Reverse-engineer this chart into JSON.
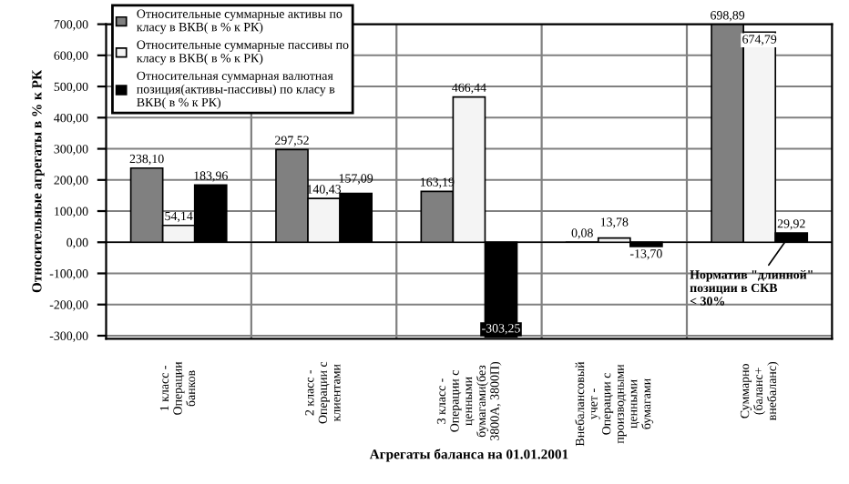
{
  "chart_data": {
    "type": "bar",
    "xlabel": "Агрегаты баланса на 01.01.2001",
    "ylabel": "Относительные агрегаты в % к РК",
    "categories": [
      "1 класс -\nОперации\nбанков",
      "2 класс -\nОперации с\nклиентами",
      "3 класс -\nОперации с\nценными\nбумагами(без\n3800А, 3800П)",
      "Внебалансовый\nучет -\nОперации с\nпроизводными\nценными\nбумагами",
      "Суммарно\n(баланс+\nвнебаланс)"
    ],
    "series": [
      {
        "name": "Относительные суммарные активы по класу в ВКВ( в % к РК)",
        "color": "#808080",
        "values": [
          238.1,
          297.52,
          163.19,
          0.08,
          698.89
        ],
        "value_labels": [
          "238,10",
          "297,52",
          "163,19",
          "0,08",
          "698,89"
        ]
      },
      {
        "name": "Относительные суммарные пассивы по класу в ВКВ( в % к РК)",
        "color": "#f4f4f4",
        "values": [
          54.14,
          140.43,
          466.44,
          13.78,
          674.79
        ],
        "value_labels": [
          "54,14",
          "140,43",
          "466,44",
          "13,78",
          "674,79"
        ]
      },
      {
        "name": "Относительная суммарная валютная позиция(активы-пассивы) по класу в ВКВ( в % к РК)",
        "color": "#000000",
        "values": [
          183.96,
          157.09,
          -303.25,
          -13.7,
          29.92
        ],
        "value_labels": [
          "183,96",
          "157,09",
          "-303,25",
          "-13,70",
          "29,92"
        ]
      }
    ],
    "ylim": [
      -310,
      700
    ],
    "yticks": [
      {
        "value": -300,
        "label": "-300,00"
      },
      {
        "value": -200,
        "label": "-200,00"
      },
      {
        "value": -100,
        "label": "-100,00"
      },
      {
        "value": 0,
        "label": "0,00"
      },
      {
        "value": 100,
        "label": "100,00"
      },
      {
        "value": 200,
        "label": "200,00"
      },
      {
        "value": 300,
        "label": "300,00"
      },
      {
        "value": 400,
        "label": "400,00"
      },
      {
        "value": 500,
        "label": "500,00"
      },
      {
        "value": 600,
        "label": "600,00"
      },
      {
        "value": 700,
        "label": "700,00"
      }
    ],
    "grid": "y",
    "legend": "top left",
    "annotations": [
      {
        "text": "Норматив \"длинной\"\nпозиции в СКВ\n< 30%",
        "x": "Суммарно\n(баланс+\nвнебаланс)",
        "y": 29.92
      }
    ]
  }
}
